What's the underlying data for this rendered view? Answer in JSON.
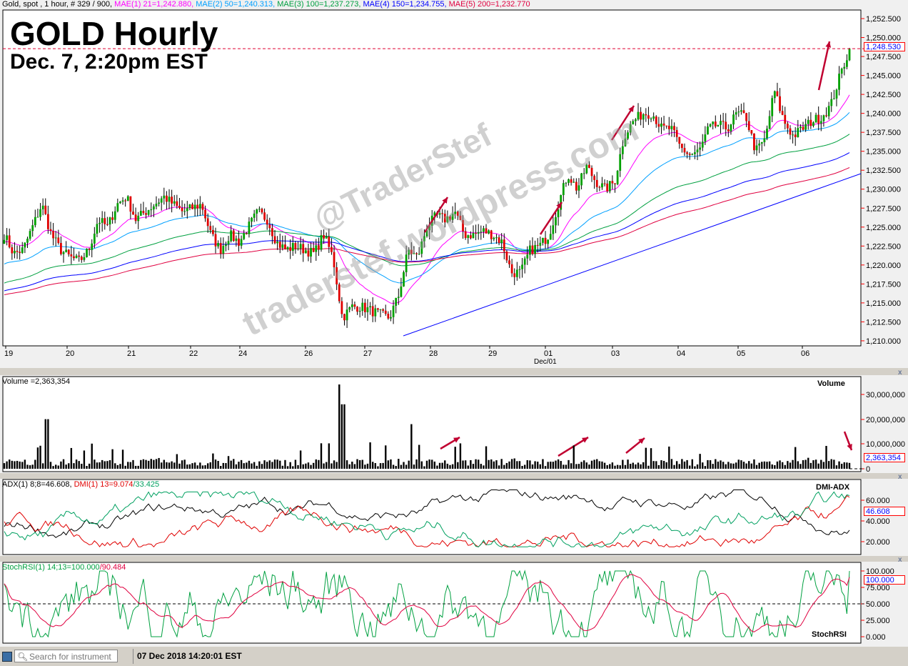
{
  "header": {
    "instrument": "Gold, spot , 1 hour, # 329 / 900, ",
    "ma": [
      {
        "text": "MAE(1) 21=1,242.880, ",
        "color": "#ff00ff"
      },
      {
        "text": "MAE(2) 50=1,240.313, ",
        "color": "#00a0ff"
      },
      {
        "text": "MAE(3) 100=1,237.273, ",
        "color": "#00a040"
      },
      {
        "text": "MAE(4) 150=1,234.755, ",
        "color": "#0000ff"
      },
      {
        "text": "MAE(5) 200=1,232.770",
        "color": "#e00040"
      }
    ]
  },
  "title": "GOLD Hourly",
  "subtitle": "Dec. 7, 2:20pm EST",
  "watermark": {
    "line1": "@TraderStef",
    "line2": "traderstef.wordpress.com"
  },
  "chart_data": [
    {
      "type": "candlestick",
      "name": "Gold, spot , 1 hour",
      "y_ticks": [
        "1,252.500",
        "1,250.000",
        "1,247.500",
        "1,245.000",
        "1,242.500",
        "1,240.000",
        "1,237.500",
        "1,235.000",
        "1,232.500",
        "1,230.000",
        "1,227.500",
        "1,225.000",
        "1,222.500",
        "1,220.000",
        "1,217.500",
        "1,215.000",
        "1,212.500",
        "1,210.000"
      ],
      "ylim": [
        1210,
        1252.5
      ],
      "x_ticks": [
        "19",
        "20",
        "21",
        "22",
        "24",
        "26",
        "27",
        "28",
        "29",
        "01",
        "03",
        "04",
        "05",
        "06"
      ],
      "x_sublabel": "Dec/01",
      "last_price": "1,248.530",
      "last_value": 1248.53,
      "close_path": [
        1224,
        1221.5,
        1222,
        1225,
        1228,
        1224,
        1222,
        1221,
        1220.5,
        1222,
        1226,
        1225,
        1228,
        1229,
        1226,
        1227,
        1228,
        1229,
        1228,
        1227,
        1227.5,
        1228,
        1224,
        1222,
        1224,
        1223,
        1225,
        1227,
        1226,
        1223,
        1222,
        1222.5,
        1222,
        1221.5,
        1224,
        1221,
        1213,
        1214.5,
        1214.5,
        1214,
        1213.5,
        1213,
        1216,
        1222,
        1221,
        1225,
        1226.5,
        1226,
        1227,
        1224,
        1224,
        1224.5,
        1224,
        1223,
        1219,
        1219,
        1222,
        1222.5,
        1224,
        1228,
        1232,
        1230,
        1233,
        1231,
        1230,
        1231,
        1237,
        1239,
        1240,
        1240,
        1238,
        1238,
        1235.5,
        1234.5,
        1235,
        1238,
        1238.5,
        1238,
        1240,
        1239.5,
        1235,
        1236.5,
        1243,
        1239,
        1237,
        1238,
        1239,
        1239.5,
        1241,
        1245,
        1248.5
      ],
      "moving_averages": [
        {
          "name": "MAE(1) 21",
          "value": 1242.88,
          "color": "#ff00ff"
        },
        {
          "name": "MAE(2) 50",
          "value": 1240.313,
          "color": "#00a0ff"
        },
        {
          "name": "MAE(3) 100",
          "value": 1237.273,
          "color": "#00a040"
        },
        {
          "name": "MAE(4) 150",
          "value": 1234.755,
          "color": "#0000ff"
        },
        {
          "name": "MAE(5) 200",
          "value": 1232.77,
          "color": "#e00040"
        }
      ]
    },
    {
      "type": "bar",
      "name": "Volume",
      "label": "Volume =2,363,354",
      "y_ticks": [
        "30,000,000",
        "20,000,000",
        "10,000,000",
        "0"
      ],
      "ylim": [
        0,
        35000000
      ],
      "last_value": "2,363,354"
    },
    {
      "type": "line",
      "name": "DMI-ADX",
      "label_adx": "ADX(1) 8;8=46.608, ",
      "label_dmi": "DMI(1) 13=9.074",
      "label_dmi2": "/33.425",
      "y_ticks": [
        "60.000",
        "40.000",
        "20.000"
      ],
      "last_value": "46.608",
      "colors": {
        "adx": "#000000",
        "dmi_minus": "#e00000",
        "dmi_plus": "#00a060"
      }
    },
    {
      "type": "line",
      "name": "StochRSI",
      "label_main": "StochRSI(1) 14;13=100.000",
      "label_sig": "/90.484",
      "y_ticks": [
        "100.000",
        "75.000",
        "50.000",
        "25.000",
        "0.000"
      ],
      "last_value": "100.000",
      "colors": {
        "k": "#00a040",
        "d": "#e00040"
      }
    }
  ],
  "status": {
    "search_placeholder": "Search for instrument",
    "datetime": "07 Dec 2018 14:20:01 EST"
  }
}
